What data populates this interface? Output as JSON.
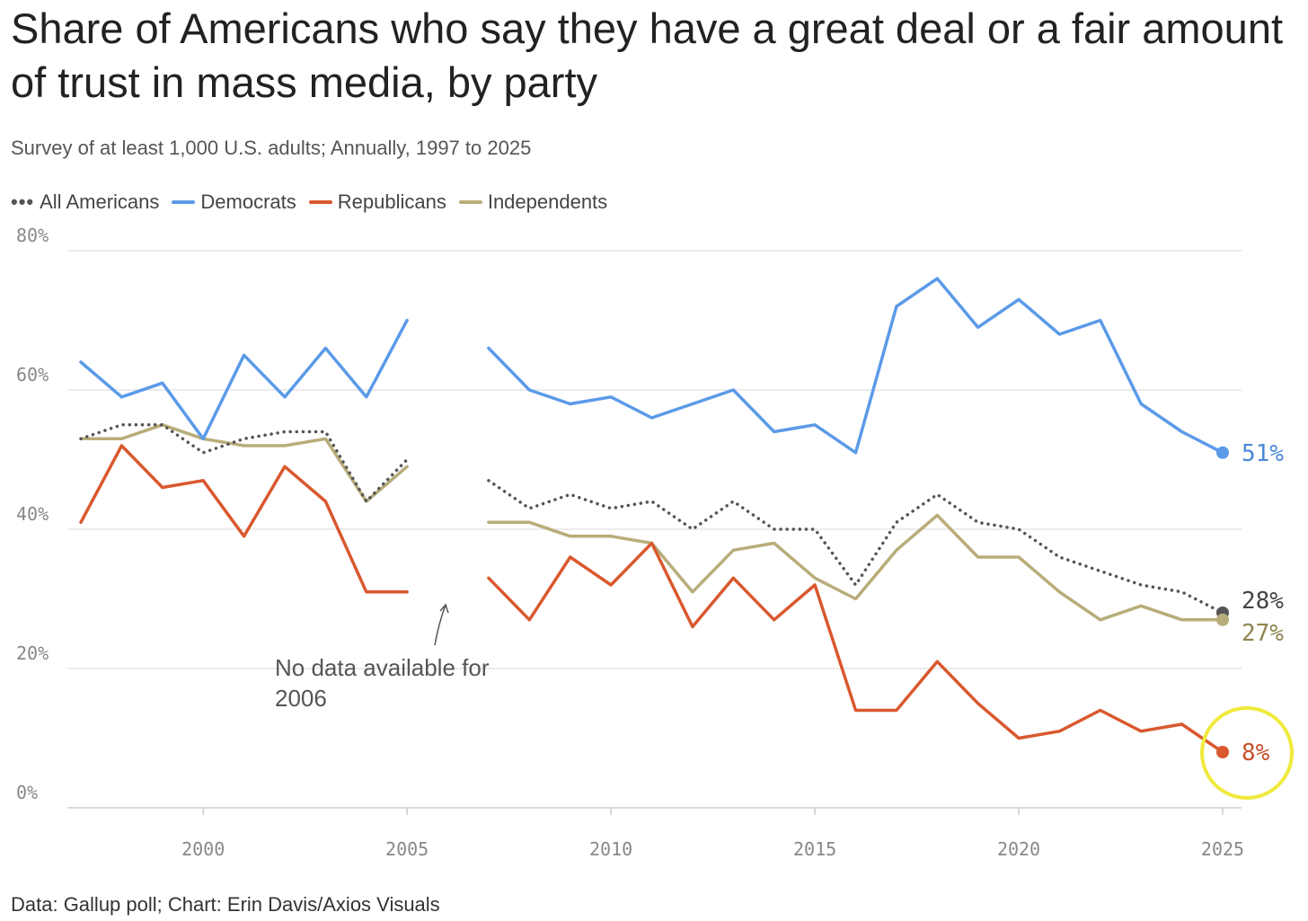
{
  "chart_data": {
    "type": "line",
    "title": "Share of Americans who say they have a great deal or a fair amount of trust in mass media, by party",
    "subtitle": "Survey of at least 1,000 U.S. adults; Annually, 1997 to 2025",
    "source": "Data: Gallup poll; Chart: Erin Davis/Axios Visuals",
    "xlabel": "",
    "ylabel": "",
    "x": [
      1997,
      1998,
      1999,
      2000,
      2001,
      2002,
      2003,
      2004,
      2005,
      2006,
      2007,
      2008,
      2009,
      2010,
      2011,
      2012,
      2013,
      2014,
      2015,
      2016,
      2017,
      2018,
      2019,
      2020,
      2021,
      2022,
      2023,
      2024,
      2025
    ],
    "xlim": [
      1997,
      2025
    ],
    "ylim": [
      0,
      80
    ],
    "x_ticks": [
      "2000",
      "2005",
      "2010",
      "2015",
      "2020",
      "2025"
    ],
    "y_ticks": [
      "0%",
      "20%",
      "40%",
      "60%",
      "80%"
    ],
    "grid": "horizontal",
    "legend_position": "top-left",
    "series": [
      {
        "name": "All Americans",
        "color": "#555555",
        "style": "dotted",
        "end_label": "28%",
        "values": [
          53,
          55,
          55,
          51,
          53,
          54,
          54,
          44,
          50,
          null,
          47,
          43,
          45,
          43,
          44,
          40,
          44,
          40,
          40,
          32,
          41,
          45,
          41,
          40,
          36,
          34,
          32,
          31,
          28
        ]
      },
      {
        "name": "Democrats",
        "color": "#5b9ae8",
        "style": "solid",
        "end_label": "51%",
        "values": [
          64,
          59,
          61,
          53,
          65,
          59,
          66,
          59,
          70,
          null,
          66,
          60,
          58,
          59,
          56,
          58,
          60,
          54,
          55,
          51,
          72,
          76,
          69,
          73,
          68,
          70,
          58,
          54,
          51
        ]
      },
      {
        "name": "Republicans",
        "color": "#d9582e",
        "style": "solid",
        "end_label": "8%",
        "values": [
          41,
          52,
          46,
          47,
          39,
          49,
          44,
          31,
          31,
          null,
          33,
          27,
          36,
          32,
          38,
          26,
          33,
          27,
          32,
          14,
          14,
          21,
          15,
          10,
          11,
          14,
          11,
          12,
          8
        ]
      },
      {
        "name": "Independents",
        "color": "#b8ad7a",
        "style": "solid",
        "end_label": "27%",
        "values": [
          53,
          53,
          55,
          53,
          52,
          52,
          53,
          44,
          49,
          null,
          41,
          41,
          39,
          39,
          38,
          31,
          37,
          38,
          33,
          30,
          37,
          42,
          36,
          36,
          31,
          27,
          29,
          27,
          27
        ]
      }
    ],
    "annotations": [
      {
        "text_line1": "No data available for",
        "text_line2": "2006"
      }
    ],
    "highlight_color": "#f0ea3c"
  }
}
